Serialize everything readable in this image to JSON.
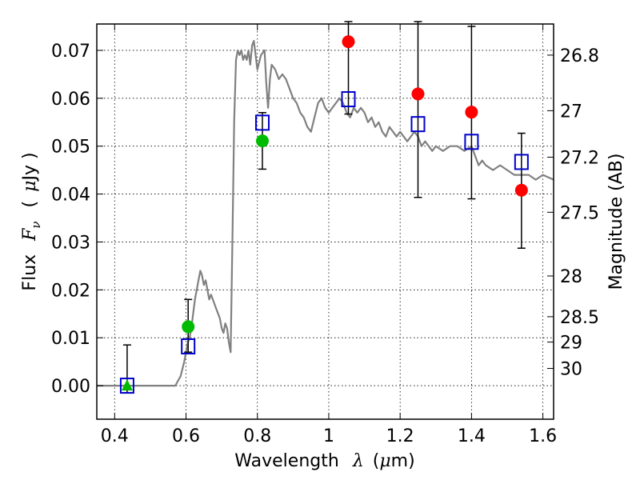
{
  "chart_data": {
    "type": "scatter",
    "xlabel": {
      "text": "Wavelength",
      "symbol": "λ",
      "open": "(",
      "mu": "μ",
      "unit": "m)"
    },
    "ylabel": {
      "text": "Flux",
      "symbol": "F",
      "sub": "ν",
      "open": "(",
      "mu": "μ",
      "unit": "Jy )"
    },
    "y2label": "Magnitude (AB)",
    "xlim": [
      0.35,
      1.63
    ],
    "ylim": [
      -0.007,
      0.0755
    ],
    "grid": true,
    "xticks": [
      0.4,
      0.6,
      0.8,
      1.0,
      1.2,
      1.4,
      1.6
    ],
    "xtick_labels": [
      "0.4",
      "0.6",
      "0.8",
      "1",
      "1.2",
      "1.4",
      "1.6"
    ],
    "yticks": [
      0.0,
      0.01,
      0.02,
      0.03,
      0.04,
      0.05,
      0.06,
      0.07
    ],
    "ytick_labels": [
      "0.00",
      "0.01",
      "0.02",
      "0.03",
      "0.04",
      "0.05",
      "0.06",
      "0.07"
    ],
    "y2ticks": [
      {
        "label": "26.8",
        "flux": 0.069
      },
      {
        "label": "27",
        "flux": 0.0574
      },
      {
        "label": "27.2",
        "flux": 0.0477
      },
      {
        "label": "27.5",
        "flux": 0.0362
      },
      {
        "label": "28",
        "flux": 0.0229
      },
      {
        "label": "28.5",
        "flux": 0.0144
      },
      {
        "label": "29",
        "flux": 0.0091
      },
      {
        "label": "30",
        "flux": 0.0036
      }
    ],
    "colors": {
      "model": "#808080",
      "observed_red": "#ff0000",
      "observed_green": "#00bb00",
      "model_box": "#0000cc",
      "errorbar": "#000000"
    },
    "model_sed": {
      "name": "",
      "x": [
        0.35,
        0.4,
        0.45,
        0.5,
        0.55,
        0.57,
        0.585,
        0.595,
        0.6,
        0.605,
        0.61,
        0.615,
        0.62,
        0.625,
        0.63,
        0.635,
        0.64,
        0.645,
        0.65,
        0.655,
        0.66,
        0.665,
        0.67,
        0.675,
        0.68,
        0.685,
        0.69,
        0.695,
        0.7,
        0.705,
        0.71,
        0.715,
        0.72,
        0.725,
        0.73,
        0.735,
        0.74,
        0.745,
        0.75,
        0.755,
        0.76,
        0.765,
        0.77,
        0.775,
        0.78,
        0.785,
        0.79,
        0.795,
        0.8,
        0.81,
        0.82,
        0.825,
        0.83,
        0.835,
        0.84,
        0.85,
        0.86,
        0.87,
        0.88,
        0.89,
        0.9,
        0.91,
        0.92,
        0.93,
        0.94,
        0.95,
        0.96,
        0.97,
        0.98,
        0.99,
        1.0,
        1.01,
        1.02,
        1.03,
        1.04,
        1.05,
        1.06,
        1.07,
        1.08,
        1.09,
        1.1,
        1.11,
        1.12,
        1.13,
        1.14,
        1.15,
        1.16,
        1.17,
        1.18,
        1.19,
        1.2,
        1.21,
        1.22,
        1.23,
        1.24,
        1.25,
        1.26,
        1.27,
        1.28,
        1.29,
        1.3,
        1.32,
        1.34,
        1.36,
        1.38,
        1.4,
        1.41,
        1.42,
        1.43,
        1.44,
        1.46,
        1.48,
        1.5,
        1.52,
        1.54,
        1.56,
        1.58,
        1.6,
        1.63
      ],
      "y": [
        0.0,
        0.0,
        0.0,
        0.0,
        0.0,
        0.0,
        0.002,
        0.005,
        0.007,
        0.009,
        0.01,
        0.012,
        0.015,
        0.018,
        0.02,
        0.022,
        0.024,
        0.023,
        0.021,
        0.022,
        0.02,
        0.018,
        0.019,
        0.018,
        0.017,
        0.016,
        0.015,
        0.014,
        0.012,
        0.011,
        0.013,
        0.012,
        0.009,
        0.007,
        0.03,
        0.055,
        0.068,
        0.07,
        0.069,
        0.07,
        0.068,
        0.069,
        0.068,
        0.07,
        0.067,
        0.071,
        0.072,
        0.069,
        0.066,
        0.069,
        0.07,
        0.063,
        0.058,
        0.064,
        0.067,
        0.066,
        0.064,
        0.065,
        0.064,
        0.062,
        0.06,
        0.059,
        0.057,
        0.056,
        0.054,
        0.053,
        0.056,
        0.059,
        0.06,
        0.058,
        0.057,
        0.058,
        0.059,
        0.06,
        0.059,
        0.057,
        0.056,
        0.058,
        0.057,
        0.058,
        0.057,
        0.055,
        0.056,
        0.054,
        0.055,
        0.053,
        0.052,
        0.054,
        0.053,
        0.052,
        0.053,
        0.052,
        0.051,
        0.052,
        0.053,
        0.052,
        0.05,
        0.051,
        0.05,
        0.049,
        0.05,
        0.049,
        0.05,
        0.05,
        0.049,
        0.05,
        0.048,
        0.046,
        0.047,
        0.046,
        0.045,
        0.046,
        0.045,
        0.044,
        0.044,
        0.044,
        0.043,
        0.044,
        0.043
      ]
    },
    "model_photometry": {
      "name": "",
      "x": [
        0.435,
        0.606,
        0.814,
        1.055,
        1.25,
        1.4,
        1.54
      ],
      "y": [
        0.0,
        0.0082,
        0.0549,
        0.0598,
        0.0546,
        0.0509,
        0.0467
      ]
    },
    "observed_red": {
      "name": "",
      "x": [
        1.055,
        1.25,
        1.4,
        1.54
      ],
      "y": [
        0.0718,
        0.0609,
        0.0571,
        0.0408
      ],
      "yerr_low": [
        0.0567,
        0.0393,
        0.039,
        0.0287
      ],
      "yerr_high": [
        0.076,
        0.076,
        0.075,
        0.0527
      ]
    },
    "observed_green_circles": {
      "name": "",
      "x": [
        0.606,
        0.814
      ],
      "y": [
        0.0123,
        0.0511
      ],
      "yerr_low": [
        0.007,
        0.0452
      ],
      "yerr_high": [
        0.018,
        0.057
      ]
    },
    "observed_green_triangle": {
      "name": "",
      "x": [
        0.435
      ],
      "y": [
        0.0
      ],
      "yerr_low": [
        -0.0015
      ],
      "yerr_high": [
        0.0085
      ]
    }
  }
}
